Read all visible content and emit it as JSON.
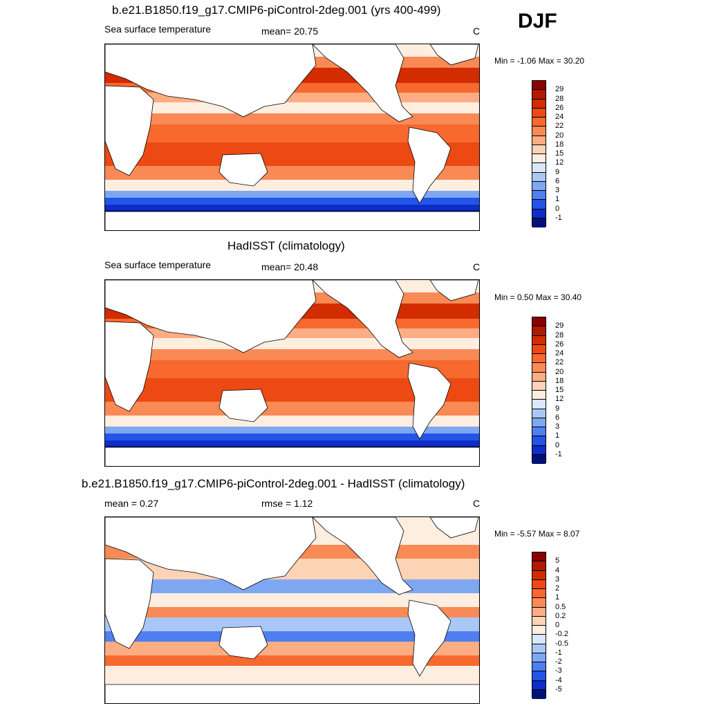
{
  "season": "DJF",
  "panels": [
    {
      "title": "b.e21.B1850.f19_g17.CMIP6-piControl-2deg.001 (yrs 400-499)",
      "left": "Sea surface temperature",
      "center": "mean=  20.75",
      "units": "C",
      "minmax": "Min =  -1.06 Max =  30.20",
      "palette": "abs",
      "levels": [
        "29",
        "28",
        "26",
        "24",
        "22",
        "20",
        "18",
        "15",
        "12",
        "9",
        "6",
        "3",
        "1",
        "0",
        "-1"
      ]
    },
    {
      "title": "HadISST (climatology)",
      "left": "Sea surface temperature",
      "center": "mean=  20.48",
      "units": "C",
      "minmax": "Min =   0.50 Max =  30.40",
      "palette": "abs",
      "levels": [
        "29",
        "28",
        "26",
        "24",
        "22",
        "20",
        "18",
        "15",
        "12",
        "9",
        "6",
        "3",
        "1",
        "0",
        "-1"
      ]
    },
    {
      "title": "b.e21.B1850.f19_g17.CMIP6-piControl-2deg.001 - HadISST (climatology)",
      "left": "mean =   0.27",
      "center": "rmse =   1.12",
      "units": "C",
      "minmax": "Min =  -5.57 Max =   8.07",
      "palette": "diff",
      "levels": [
        "5",
        "4",
        "3",
        "2",
        "1",
        "0.5",
        "0.2",
        "0",
        "-0.2",
        "-0.5",
        "-1",
        "-2",
        "-3",
        "-4",
        "-5"
      ]
    }
  ],
  "colors": {
    "abs": [
      "#8b0000",
      "#b01a00",
      "#d22c00",
      "#ec4a12",
      "#f7692e",
      "#fa8a55",
      "#fcad84",
      "#fdd3b6",
      "#fdeee0",
      "#d9e8fb",
      "#aac8f7",
      "#7ea7f2",
      "#4f7ff0",
      "#2254e8",
      "#0d2dc8",
      "#00127a"
    ],
    "diff": [
      "#8b0000",
      "#b01a00",
      "#d22c00",
      "#ec4a12",
      "#f7692e",
      "#fa8a55",
      "#fcad84",
      "#fdd3b6",
      "#fdeee0",
      "#d9e8fb",
      "#aac8f7",
      "#7ea7f2",
      "#4f7ff0",
      "#2254e8",
      "#0d2dc8",
      "#00127a"
    ]
  }
}
